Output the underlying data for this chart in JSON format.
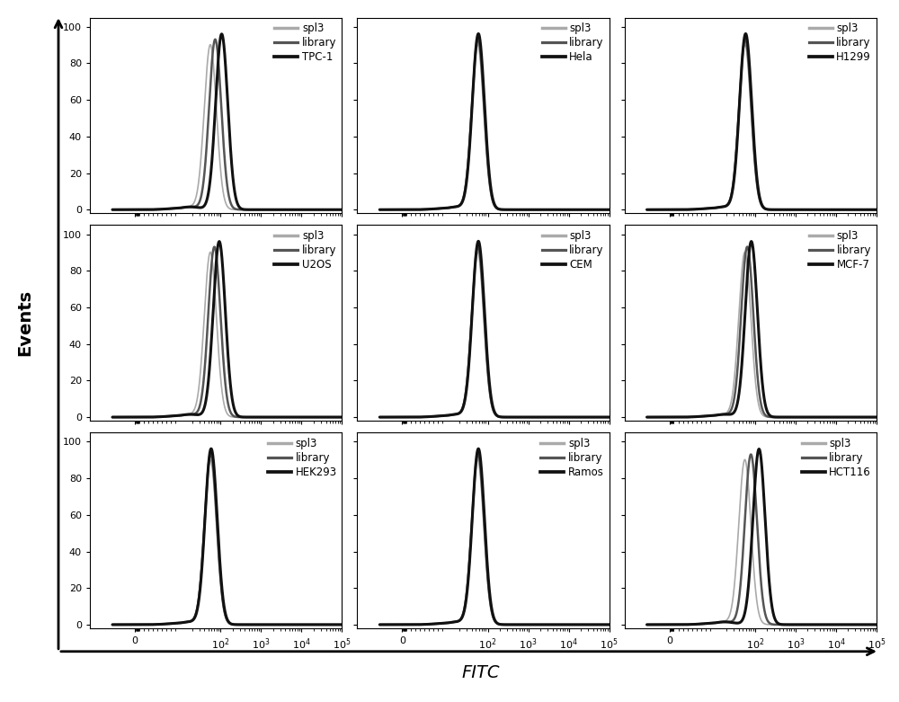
{
  "subplots": [
    {
      "cell_line": "TPC-1",
      "row": 0,
      "col": 0,
      "positive": true,
      "shift_lib": 0.12,
      "shift_apt": 0.28
    },
    {
      "cell_line": "Hela",
      "row": 0,
      "col": 1,
      "positive": false,
      "shift_lib": 0.0,
      "shift_apt": 0.0
    },
    {
      "cell_line": "H1299",
      "row": 0,
      "col": 2,
      "positive": false,
      "shift_lib": 0.0,
      "shift_apt": 0.0
    },
    {
      "cell_line": "U2OS",
      "row": 1,
      "col": 0,
      "positive": true,
      "shift_lib": 0.1,
      "shift_apt": 0.22
    },
    {
      "cell_line": "CEM",
      "row": 1,
      "col": 1,
      "positive": false,
      "shift_lib": 0.0,
      "shift_apt": 0.0
    },
    {
      "cell_line": "MCF-7",
      "row": 1,
      "col": 2,
      "positive": true,
      "shift_lib": 0.06,
      "shift_apt": 0.16
    },
    {
      "cell_line": "HEK293",
      "row": 2,
      "col": 0,
      "positive": false,
      "shift_lib": 0.0,
      "shift_apt": 0.0
    },
    {
      "cell_line": "Ramos",
      "row": 2,
      "col": 1,
      "positive": false,
      "shift_lib": 0.0,
      "shift_apt": 0.0
    },
    {
      "cell_line": "HCT116",
      "row": 2,
      "col": 2,
      "positive": true,
      "shift_lib": 0.15,
      "shift_apt": 0.35
    }
  ],
  "color_spl3": "#aaaaaa",
  "color_library": "#555555",
  "color_apt": "#111111",
  "lw_spl3": 1.2,
  "lw_library": 1.8,
  "lw_apt": 2.2,
  "yticks": [
    0,
    20,
    40,
    60,
    80,
    100
  ],
  "ylim": [
    -2,
    105
  ],
  "xlabel": "FITC",
  "ylabel": "Events",
  "axis_fontsize": 14,
  "legend_fontsize": 8.5
}
